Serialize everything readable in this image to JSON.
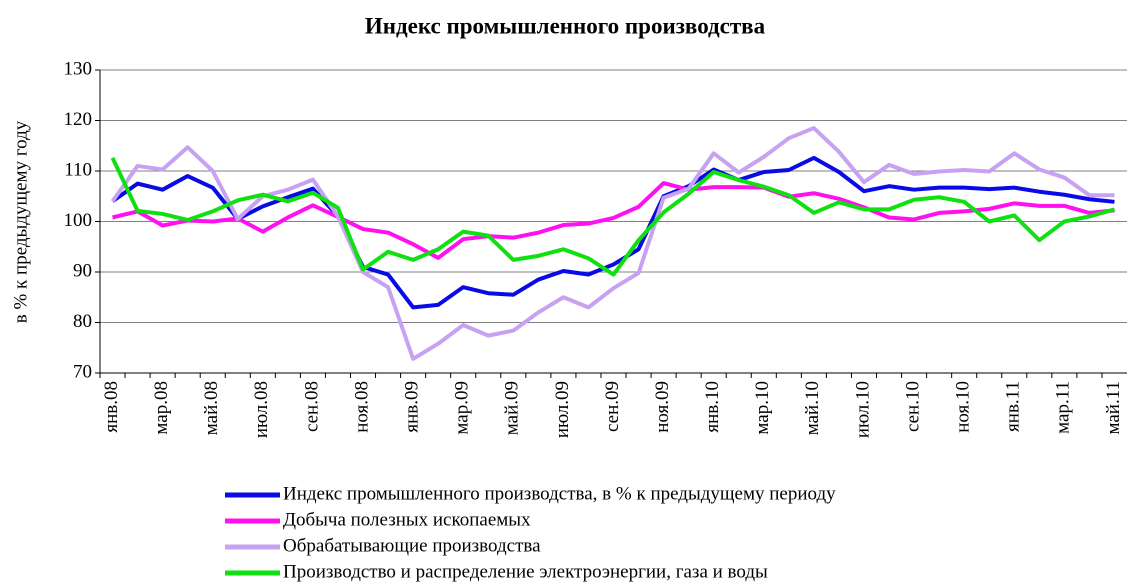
{
  "chart_data": {
    "type": "line",
    "title": "Индекс промышленного производства",
    "y_label": "в % к предыдущему году",
    "categories": [
      "янв.08",
      null,
      "мар.08",
      null,
      "май.08",
      null,
      "июл.08",
      null,
      "сен.08",
      null,
      "ноя.08",
      null,
      "янв.09",
      null,
      "мар.09",
      null,
      "май.09",
      null,
      "июл.09",
      null,
      "сен.09",
      null,
      "ноя.09",
      null,
      "янв.10",
      null,
      "мар.10",
      null,
      "май.10",
      null,
      "июл.10",
      null,
      "сен.10",
      null,
      "ноя.10",
      null,
      "янв.11",
      null,
      "мар.11",
      null,
      "май.11"
    ],
    "series": [
      {
        "name": "Индекс промышленного производства, в % к предыдущему периоду",
        "color": "#0a0ae6",
        "values": [
          104,
          107.5,
          106.3,
          109,
          106.7,
          100.5,
          103,
          104.8,
          106.5,
          101,
          91,
          89.5,
          83,
          83.5,
          87,
          85.8,
          85.5,
          88.5,
          90.2,
          89.5,
          91.5,
          94.5,
          105,
          107,
          110.3,
          108.2,
          109.8,
          110.2,
          112.6,
          109.8,
          106,
          107,
          106.3,
          106.7,
          106.7,
          106.4,
          106.7,
          105.9,
          105.3,
          104.4,
          103.9
        ]
      },
      {
        "name": "Добыча полезных ископаемых",
        "color": "#ff10ee",
        "values": [
          100.8,
          102,
          99.2,
          100.2,
          100,
          100.6,
          98,
          100.8,
          103.2,
          100.9,
          98.5,
          97.8,
          95.5,
          92.8,
          96.5,
          97.1,
          96.8,
          97.8,
          99.3,
          99.6,
          100.7,
          102.9,
          107.6,
          106.3,
          106.8,
          106.8,
          106.7,
          104.9,
          105.6,
          104.5,
          102.8,
          100.8,
          100.4,
          101.7,
          102,
          102.5,
          103.6,
          103.1,
          103.1,
          101.7,
          102.2
        ]
      },
      {
        "name": "Обрабатывающие производства",
        "color": "#c8a2f2",
        "values": [
          104,
          111,
          110.3,
          114.7,
          110,
          100.5,
          105,
          106.3,
          108.3,
          101,
          90,
          87,
          72.8,
          75.8,
          79.5,
          77.4,
          78.4,
          82,
          85,
          83,
          86.8,
          89.8,
          104.7,
          106.5,
          113.5,
          109.7,
          112.8,
          116.5,
          118.5,
          113.8,
          107.8,
          111.2,
          109.4,
          109.9,
          110.2,
          109.9,
          113.5,
          110.3,
          108.7,
          105.2,
          105.2
        ]
      },
      {
        "name": "Производство и распределение электроэнергии, газа и воды",
        "color": "#10e010",
        "values": [
          112.6,
          102.1,
          101.5,
          100.3,
          102,
          104.2,
          105.3,
          104,
          105.7,
          102.7,
          90.5,
          94,
          92.4,
          94.5,
          98,
          97.2,
          92.4,
          93.2,
          94.5,
          92.7,
          89.5,
          96.3,
          101.8,
          105.5,
          109.8,
          108.2,
          106.9,
          105.2,
          101.7,
          103.8,
          102.4,
          102.4,
          104.3,
          104.8,
          103.9,
          100,
          101.2,
          96.3,
          100,
          101,
          102.4
        ]
      }
    ],
    "ylim": [
      70,
      130
    ],
    "yticks": [
      70,
      80,
      90,
      100,
      110,
      120,
      130
    ],
    "grid": true,
    "legend": "bottom"
  }
}
